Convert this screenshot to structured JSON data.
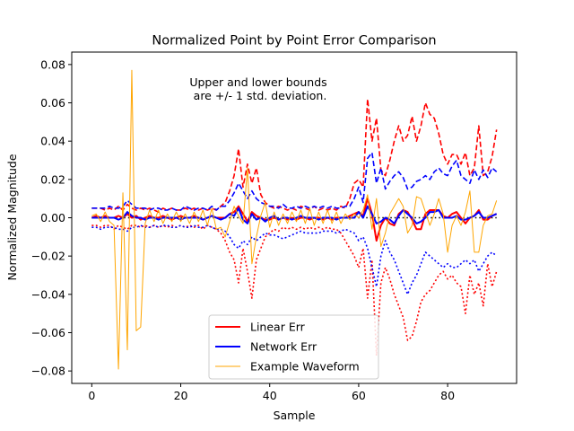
{
  "chart_data": {
    "type": "line",
    "title": "Normalized Point by Point Error Comparison",
    "xlabel": "Sample",
    "ylabel": "Normalized Magnitude",
    "xlim": [
      -4.5,
      95.5
    ],
    "ylim": [
      -0.0865,
      0.0865
    ],
    "xticks": [
      0,
      20,
      40,
      60,
      80
    ],
    "xtick_labels": [
      "0",
      "20",
      "40",
      "60",
      "80"
    ],
    "yticks": [
      -0.08,
      -0.06,
      -0.04,
      -0.02,
      0.0,
      0.02,
      0.04,
      0.06,
      0.08
    ],
    "ytick_labels": [
      "−0.08",
      "−0.06",
      "−0.04",
      "−0.02",
      "0.00",
      "0.02",
      "0.04",
      "0.06",
      "0.08"
    ],
    "grid": false,
    "legend_position": "lower center",
    "annotation": [
      "Upper and lower bounds",
      " are +/- 1 std. deviation."
    ],
    "legend": [
      {
        "label": "Linear Err",
        "color": "#ff0000",
        "width": 2
      },
      {
        "label": "Network Err",
        "color": "#0000ff",
        "width": 2
      },
      {
        "label": "Example Waveform",
        "color": "#ffa500",
        "width": 1
      }
    ],
    "x": [
      0,
      1,
      2,
      3,
      4,
      5,
      6,
      7,
      8,
      9,
      10,
      11,
      12,
      13,
      14,
      15,
      16,
      17,
      18,
      19,
      20,
      21,
      22,
      23,
      24,
      25,
      26,
      27,
      28,
      29,
      30,
      31,
      32,
      33,
      34,
      35,
      36,
      37,
      38,
      39,
      40,
      41,
      42,
      43,
      44,
      45,
      46,
      47,
      48,
      49,
      50,
      51,
      52,
      53,
      54,
      55,
      56,
      57,
      58,
      59,
      60,
      61,
      62,
      63,
      64,
      65,
      66,
      67,
      68,
      69,
      70,
      71,
      72,
      73,
      74,
      75,
      76,
      77,
      78,
      79,
      80,
      81,
      82,
      83,
      84,
      85,
      86,
      87,
      88,
      89,
      90,
      91
    ],
    "series": [
      {
        "key": "zero",
        "color": "#000000",
        "width": 1.5,
        "dash": "1.5,3",
        "values": [
          0,
          0,
          0,
          0,
          0,
          0,
          0,
          0,
          0,
          0,
          0,
          0,
          0,
          0,
          0,
          0,
          0,
          0,
          0,
          0,
          0,
          0,
          0,
          0,
          0,
          0,
          0,
          0,
          0,
          0,
          0,
          0,
          0,
          0,
          0,
          0,
          0,
          0,
          0,
          0,
          0,
          0,
          0,
          0,
          0,
          0,
          0,
          0,
          0,
          0,
          0,
          0,
          0,
          0,
          0,
          0,
          0,
          0,
          0,
          0,
          0,
          0,
          0,
          0,
          0,
          0,
          0,
          0,
          0,
          0,
          0,
          0,
          0,
          0,
          0,
          0,
          0,
          0,
          0,
          0,
          0,
          0,
          0,
          0,
          0,
          0,
          0,
          0,
          0,
          0,
          0,
          0
        ]
      },
      {
        "key": "linear_upper",
        "color": "#ff0000",
        "width": 1.6,
        "dash": "6,3",
        "values": [
          0.005,
          0.005,
          0.005,
          0.004,
          0.005,
          0.004,
          0.006,
          0.004,
          0.007,
          0.005,
          0.004,
          0.005,
          0.004,
          0.005,
          0.004,
          0.003,
          0.005,
          0.004,
          0.005,
          0.004,
          0.004,
          0.005,
          0.004,
          0.005,
          0.004,
          0.005,
          0.004,
          0.005,
          0.004,
          0.006,
          0.008,
          0.014,
          0.022,
          0.036,
          0.016,
          0.028,
          0.018,
          0.026,
          0.012,
          0.008,
          0.006,
          0.005,
          0.006,
          0.005,
          0.004,
          0.005,
          0.004,
          0.006,
          0.005,
          0.004,
          0.006,
          0.004,
          0.005,
          0.004,
          0.005,
          0.004,
          0.006,
          0.005,
          0.01,
          0.018,
          0.02,
          0.016,
          0.062,
          0.04,
          0.052,
          0.025,
          0.022,
          0.03,
          0.04,
          0.048,
          0.04,
          0.043,
          0.053,
          0.04,
          0.048,
          0.06,
          0.054,
          0.052,
          0.044,
          0.033,
          0.028,
          0.033,
          0.033,
          0.028,
          0.034,
          0.022,
          0.026,
          0.048,
          0.022,
          0.024,
          0.032,
          0.046
        ]
      },
      {
        "key": "linear_lower",
        "color": "#ff0000",
        "width": 1.6,
        "dash": "2,2.5",
        "values": [
          -0.004,
          -0.004,
          -0.005,
          -0.004,
          -0.004,
          -0.006,
          -0.004,
          -0.005,
          -0.006,
          -0.004,
          -0.004,
          -0.005,
          -0.004,
          -0.005,
          -0.004,
          -0.005,
          -0.004,
          -0.005,
          -0.004,
          -0.005,
          -0.004,
          -0.005,
          -0.004,
          -0.005,
          -0.004,
          -0.006,
          -0.004,
          -0.005,
          -0.006,
          -0.008,
          -0.012,
          -0.018,
          -0.022,
          -0.034,
          -0.016,
          -0.028,
          -0.042,
          -0.022,
          -0.016,
          -0.01,
          -0.008,
          -0.006,
          -0.007,
          -0.005,
          -0.006,
          -0.005,
          -0.006,
          -0.005,
          -0.006,
          -0.005,
          -0.006,
          -0.005,
          -0.006,
          -0.005,
          -0.006,
          -0.006,
          -0.008,
          -0.012,
          -0.016,
          -0.02,
          -0.026,
          -0.016,
          -0.042,
          -0.022,
          -0.072,
          -0.034,
          -0.026,
          -0.032,
          -0.04,
          -0.046,
          -0.052,
          -0.064,
          -0.062,
          -0.054,
          -0.044,
          -0.04,
          -0.038,
          -0.034,
          -0.03,
          -0.028,
          -0.032,
          -0.03,
          -0.034,
          -0.036,
          -0.05,
          -0.03,
          -0.04,
          -0.034,
          -0.046,
          -0.024,
          -0.036,
          -0.028
        ]
      },
      {
        "key": "network_upper",
        "color": "#0000ff",
        "width": 1.6,
        "dash": "6,3",
        "values": [
          0.005,
          0.005,
          0.005,
          0.005,
          0.006,
          0.005,
          0.005,
          0.006,
          0.009,
          0.007,
          0.005,
          0.005,
          0.005,
          0.004,
          0.005,
          0.005,
          0.004,
          0.004,
          0.005,
          0.004,
          0.004,
          0.006,
          0.005,
          0.004,
          0.005,
          0.005,
          0.004,
          0.006,
          0.004,
          0.006,
          0.006,
          0.009,
          0.013,
          0.018,
          0.014,
          0.01,
          0.014,
          0.01,
          0.008,
          0.007,
          0.006,
          0.006,
          0.005,
          0.007,
          0.005,
          0.005,
          0.006,
          0.005,
          0.006,
          0.005,
          0.006,
          0.005,
          0.006,
          0.005,
          0.006,
          0.005,
          0.005,
          0.006,
          0.006,
          0.01,
          0.016,
          0.008,
          0.031,
          0.034,
          0.018,
          0.026,
          0.015,
          0.019,
          0.022,
          0.024,
          0.021,
          0.015,
          0.016,
          0.019,
          0.02,
          0.022,
          0.02,
          0.024,
          0.026,
          0.023,
          0.022,
          0.027,
          0.03,
          0.022,
          0.02,
          0.018,
          0.025,
          0.02,
          0.025,
          0.021,
          0.026,
          0.024
        ]
      },
      {
        "key": "network_lower",
        "color": "#0000ff",
        "width": 1.6,
        "dash": "2,2.5",
        "values": [
          -0.005,
          -0.005,
          -0.006,
          -0.005,
          -0.005,
          -0.005,
          -0.006,
          -0.006,
          -0.007,
          -0.005,
          -0.005,
          -0.004,
          -0.005,
          -0.005,
          -0.004,
          -0.005,
          -0.004,
          -0.004,
          -0.005,
          -0.005,
          -0.004,
          -0.005,
          -0.005,
          -0.004,
          -0.005,
          -0.005,
          -0.004,
          -0.005,
          -0.006,
          -0.006,
          -0.007,
          -0.01,
          -0.014,
          -0.016,
          -0.012,
          -0.014,
          -0.01,
          -0.012,
          -0.01,
          -0.008,
          -0.009,
          -0.009,
          -0.01,
          -0.011,
          -0.01,
          -0.009,
          -0.008,
          -0.007,
          -0.008,
          -0.008,
          -0.008,
          -0.008,
          -0.007,
          -0.007,
          -0.007,
          -0.008,
          -0.007,
          -0.006,
          -0.007,
          -0.008,
          -0.012,
          -0.01,
          -0.016,
          -0.026,
          -0.036,
          -0.02,
          -0.012,
          -0.018,
          -0.022,
          -0.028,
          -0.034,
          -0.04,
          -0.034,
          -0.03,
          -0.024,
          -0.018,
          -0.02,
          -0.022,
          -0.024,
          -0.026,
          -0.024,
          -0.026,
          -0.026,
          -0.024,
          -0.022,
          -0.024,
          -0.022,
          -0.028,
          -0.024,
          -0.02,
          -0.018,
          -0.02
        ]
      },
      {
        "key": "linear_err",
        "color": "#ff0000",
        "width": 2,
        "values": [
          0.0,
          0.001,
          0.0,
          0.001,
          0.0,
          0.0,
          0.001,
          0.0,
          0.002,
          0.0,
          0.001,
          -0.001,
          0.0,
          0.001,
          0.0,
          0.0,
          0.001,
          0.0,
          -0.001,
          0.0,
          0.001,
          0.0,
          0.0,
          0.001,
          0.0,
          -0.001,
          0.0,
          0.001,
          0.0,
          0.0,
          0.0,
          0.002,
          0.003,
          0.006,
          0.002,
          -0.002,
          0.003,
          0.001,
          0.0,
          -0.001,
          -0.001,
          0.0,
          -0.001,
          0.0,
          -0.001,
          0.0,
          -0.001,
          0.0,
          0.0,
          -0.001,
          0.0,
          0.0,
          -0.001,
          0.0,
          -0.001,
          0.0,
          0.0,
          0.0,
          0.001,
          0.002,
          0.003,
          0.001,
          0.01,
          0.002,
          -0.012,
          -0.004,
          0.0,
          -0.003,
          -0.004,
          0.002,
          0.004,
          0.003,
          -0.001,
          -0.006,
          -0.006,
          0.002,
          0.004,
          0.004,
          0.004,
          0.001,
          0.0,
          0.002,
          0.003,
          0.0,
          -0.003,
          0.0,
          0.001,
          0.004,
          -0.001,
          -0.001,
          0.001,
          0.002
        ]
      },
      {
        "key": "network_err",
        "color": "#0000ff",
        "width": 2,
        "values": [
          0.0,
          0.0,
          0.0,
          0.0,
          0.0,
          0.0,
          -0.001,
          0.0,
          0.003,
          0.001,
          0.0,
          0.0,
          -0.001,
          0.0,
          0.0,
          -0.001,
          0.0,
          0.0,
          0.0,
          0.0,
          -0.001,
          0.0,
          0.0,
          0.0,
          0.0,
          -0.001,
          0.0,
          0.001,
          0.0,
          -0.001,
          0.0,
          0.002,
          0.001,
          0.005,
          -0.001,
          -0.003,
          0.002,
          -0.001,
          0.0,
          -0.002,
          0.0,
          0.001,
          -0.001,
          0.0,
          0.0,
          -0.001,
          0.0,
          0.001,
          0.0,
          0.0,
          0.0,
          -0.001,
          0.0,
          0.0,
          0.0,
          -0.001,
          0.0,
          0.0,
          0.0,
          0.0,
          0.003,
          0.0,
          0.006,
          0.002,
          -0.003,
          -0.002,
          0.0,
          -0.001,
          -0.003,
          0.001,
          0.004,
          0.002,
          0.0,
          -0.003,
          -0.002,
          0.0,
          0.003,
          0.003,
          0.004,
          0.0,
          0.0,
          0.0,
          0.001,
          -0.001,
          -0.001,
          0.0,
          0.001,
          0.003,
          0.0,
          0.0,
          0.001,
          0.002
        ]
      },
      {
        "key": "waveform",
        "color": "#ffa500",
        "width": 1,
        "values": [
          0.001,
          0.002,
          -0.002,
          0.003,
          -0.002,
          -0.004,
          -0.079,
          0.013,
          -0.069,
          0.077,
          -0.059,
          -0.057,
          -0.003,
          0.004,
          -0.002,
          0.004,
          -0.003,
          0.002,
          -0.002,
          0.003,
          -0.002,
          0.002,
          -0.003,
          0.003,
          -0.002,
          0.004,
          -0.004,
          0.005,
          -0.006,
          -0.005,
          -0.01,
          -0.002,
          0.006,
          0.001,
          -0.003,
          0.026,
          -0.024,
          -0.01,
          0.001,
          0.008,
          -0.005,
          0.003,
          -0.004,
          0.002,
          -0.003,
          0.003,
          -0.002,
          0.004,
          -0.003,
          0.005,
          -0.004,
          0.003,
          -0.003,
          0.004,
          -0.003,
          0.003,
          -0.003,
          0.002,
          -0.001,
          0.002,
          0.0,
          0.004,
          0.012,
          -0.006,
          0.01,
          -0.015,
          -0.008,
          0.002,
          0.006,
          0.01,
          0.006,
          -0.008,
          -0.004,
          0.011,
          0.01,
          0.003,
          -0.004,
          0.002,
          0.01,
          0.002,
          -0.018,
          -0.004,
          0.001,
          -0.004,
          0.003,
          0.014,
          -0.018,
          -0.018,
          -0.004,
          0.001,
          0.002,
          0.009
        ]
      }
    ]
  }
}
